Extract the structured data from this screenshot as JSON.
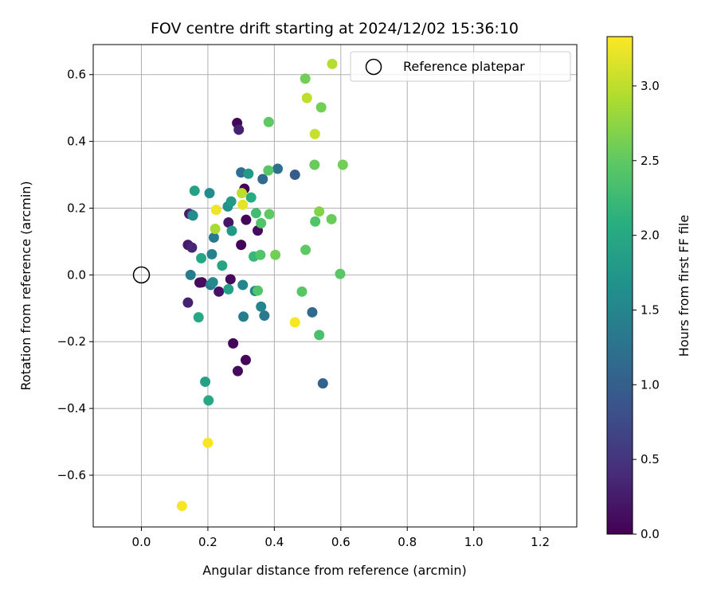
{
  "chart_data": {
    "type": "scatter",
    "title": "FOV centre drift starting at 2024/12/02 15:36:10",
    "xlabel": "Angular distance from reference (arcmin)",
    "ylabel": "Rotation from reference (arcmin)",
    "xlim": [
      -0.145,
      1.31
    ],
    "ylim": [
      -0.755,
      0.69
    ],
    "x_ticks": [
      "0.0",
      "0.2",
      "0.4",
      "0.6",
      "0.8",
      "1.0",
      "1.2"
    ],
    "x_tick_values": [
      0.0,
      0.2,
      0.4,
      0.6,
      0.8,
      1.0,
      1.2
    ],
    "y_ticks": [
      "0.6",
      "0.4",
      "0.2",
      "0.0",
      "−0.2",
      "−0.4",
      "−0.6"
    ],
    "y_tick_values": [
      0.6,
      0.4,
      0.2,
      0.0,
      -0.2,
      -0.4,
      -0.6
    ],
    "grid": true,
    "legend": {
      "position": "top-right",
      "entries": [
        "Reference platepar"
      ]
    },
    "reference_point": {
      "x": 0.0,
      "y": 0.0,
      "label": "Reference platepar"
    },
    "colorbar": {
      "label": "Hours from first FF file",
      "range": [
        0.0,
        3.33
      ],
      "colormap": "viridis",
      "ticks": [
        "0.0",
        "0.5",
        "1.0",
        "1.5",
        "2.0",
        "2.5",
        "3.0"
      ],
      "tick_values": [
        0.0,
        0.5,
        1.0,
        1.5,
        2.0,
        2.5,
        3.0
      ]
    },
    "points": [
      {
        "x": 0.288,
        "y": 0.455,
        "t": 0.05
      },
      {
        "x": 0.293,
        "y": 0.435,
        "t": 0.3
      },
      {
        "x": 0.3,
        "y": 0.09,
        "t": 0.05
      },
      {
        "x": 0.31,
        "y": 0.258,
        "t": 0.0
      },
      {
        "x": 0.315,
        "y": 0.165,
        "t": 0.05
      },
      {
        "x": 0.262,
        "y": 0.157,
        "t": 0.2
      },
      {
        "x": 0.35,
        "y": 0.133,
        "t": 0.1
      },
      {
        "x": 0.144,
        "y": 0.183,
        "t": 0.25
      },
      {
        "x": 0.14,
        "y": 0.09,
        "t": 0.25
      },
      {
        "x": 0.152,
        "y": 0.082,
        "t": 0.35
      },
      {
        "x": 0.14,
        "y": -0.083,
        "t": 0.3
      },
      {
        "x": 0.175,
        "y": -0.023,
        "t": 0.1
      },
      {
        "x": 0.182,
        "y": -0.022,
        "t": 0.1
      },
      {
        "x": 0.233,
        "y": -0.05,
        "t": 0.15
      },
      {
        "x": 0.268,
        "y": -0.013,
        "t": 0.1
      },
      {
        "x": 0.276,
        "y": -0.205,
        "t": 0.05
      },
      {
        "x": 0.29,
        "y": -0.288,
        "t": 0.1
      },
      {
        "x": 0.314,
        "y": -0.255,
        "t": 0.05
      },
      {
        "x": 0.152,
        "y": 0.18,
        "t": 0.7
      },
      {
        "x": 0.3,
        "y": 0.307,
        "t": 1.2
      },
      {
        "x": 0.365,
        "y": 0.287,
        "t": 1.15
      },
      {
        "x": 0.41,
        "y": 0.318,
        "t": 1.25
      },
      {
        "x": 0.462,
        "y": 0.3,
        "t": 0.95
      },
      {
        "x": 0.218,
        "y": 0.112,
        "t": 1.35
      },
      {
        "x": 0.212,
        "y": 0.062,
        "t": 1.45
      },
      {
        "x": 0.208,
        "y": -0.03,
        "t": 1.35
      },
      {
        "x": 0.215,
        "y": -0.022,
        "t": 1.55
      },
      {
        "x": 0.148,
        "y": 0.0,
        "t": 1.4
      },
      {
        "x": 0.307,
        "y": -0.125,
        "t": 1.4
      },
      {
        "x": 0.37,
        "y": -0.122,
        "t": 1.35
      },
      {
        "x": 0.36,
        "y": -0.095,
        "t": 1.5
      },
      {
        "x": 0.342,
        "y": -0.048,
        "t": 1.5
      },
      {
        "x": 0.305,
        "y": -0.03,
        "t": 1.5
      },
      {
        "x": 0.514,
        "y": -0.112,
        "t": 1.15
      },
      {
        "x": 0.546,
        "y": -0.325,
        "t": 1.05
      },
      {
        "x": 0.155,
        "y": 0.178,
        "t": 1.6
      },
      {
        "x": 0.205,
        "y": 0.245,
        "t": 1.6
      },
      {
        "x": 0.26,
        "y": 0.205,
        "t": 1.7
      },
      {
        "x": 0.27,
        "y": 0.22,
        "t": 1.8
      },
      {
        "x": 0.272,
        "y": 0.132,
        "t": 1.8
      },
      {
        "x": 0.322,
        "y": 0.303,
        "t": 1.8
      },
      {
        "x": 0.33,
        "y": 0.232,
        "t": 2.05
      },
      {
        "x": 0.16,
        "y": 0.252,
        "t": 1.9
      },
      {
        "x": 0.18,
        "y": 0.05,
        "t": 1.95
      },
      {
        "x": 0.243,
        "y": 0.028,
        "t": 1.95
      },
      {
        "x": 0.262,
        "y": -0.043,
        "t": 1.9
      },
      {
        "x": 0.172,
        "y": -0.127,
        "t": 2.0
      },
      {
        "x": 0.192,
        "y": -0.32,
        "t": 1.9
      },
      {
        "x": 0.202,
        "y": -0.376,
        "t": 2.0
      },
      {
        "x": 0.338,
        "y": 0.055,
        "t": 2.2
      },
      {
        "x": 0.345,
        "y": 0.185,
        "t": 2.3
      },
      {
        "x": 0.35,
        "y": -0.047,
        "t": 2.4
      },
      {
        "x": 0.358,
        "y": 0.06,
        "t": 2.4
      },
      {
        "x": 0.36,
        "y": 0.155,
        "t": 2.4
      },
      {
        "x": 0.383,
        "y": 0.458,
        "t": 2.5
      },
      {
        "x": 0.382,
        "y": 0.313,
        "t": 2.45
      },
      {
        "x": 0.385,
        "y": 0.182,
        "t": 2.5
      },
      {
        "x": 0.403,
        "y": 0.06,
        "t": 2.6
      },
      {
        "x": 0.483,
        "y": -0.05,
        "t": 2.45
      },
      {
        "x": 0.494,
        "y": 0.075,
        "t": 2.5
      },
      {
        "x": 0.493,
        "y": 0.588,
        "t": 2.6
      },
      {
        "x": 0.521,
        "y": 0.33,
        "t": 2.55
      },
      {
        "x": 0.523,
        "y": 0.16,
        "t": 2.4
      },
      {
        "x": 0.535,
        "y": -0.18,
        "t": 2.35
      },
      {
        "x": 0.535,
        "y": 0.19,
        "t": 2.7
      },
      {
        "x": 0.541,
        "y": 0.502,
        "t": 2.6
      },
      {
        "x": 0.572,
        "y": 0.167,
        "t": 2.55
      },
      {
        "x": 0.598,
        "y": 0.003,
        "t": 2.45
      },
      {
        "x": 0.606,
        "y": 0.33,
        "t": 2.6
      },
      {
        "x": 0.498,
        "y": 0.53,
        "t": 3.0
      },
      {
        "x": 0.522,
        "y": 0.422,
        "t": 3.05
      },
      {
        "x": 0.574,
        "y": 0.632,
        "t": 2.95
      },
      {
        "x": 0.222,
        "y": 0.138,
        "t": 2.9
      },
      {
        "x": 0.302,
        "y": 0.245,
        "t": 3.0
      },
      {
        "x": 0.225,
        "y": 0.195,
        "t": 3.25
      },
      {
        "x": 0.305,
        "y": 0.21,
        "t": 3.2
      },
      {
        "x": 0.462,
        "y": -0.142,
        "t": 3.3
      },
      {
        "x": 0.2,
        "y": -0.503,
        "t": 3.3
      },
      {
        "x": 0.122,
        "y": -0.692,
        "t": 3.3
      }
    ]
  }
}
